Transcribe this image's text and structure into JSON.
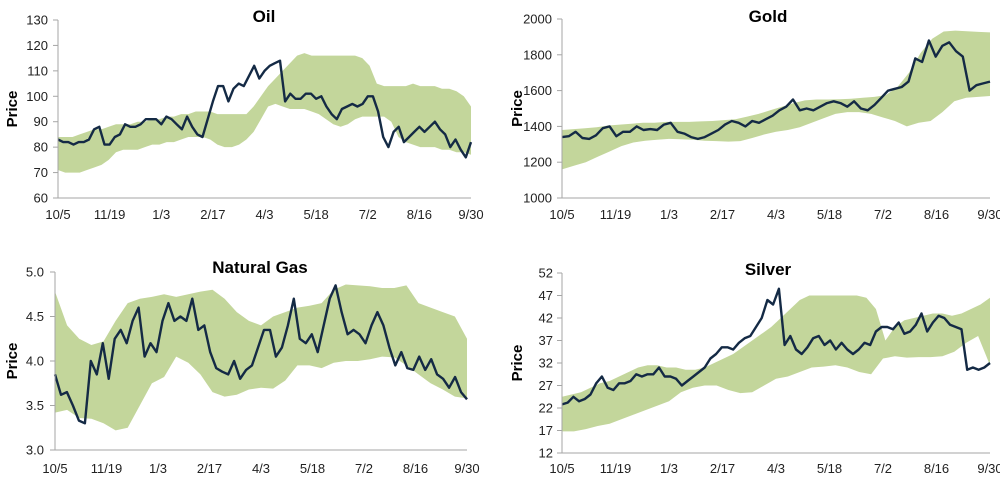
{
  "chart_data": [
    {
      "id": "oil",
      "type": "line",
      "title": "Oil",
      "xlabel": "",
      "ylabel": "Price",
      "ylim": [
        60,
        130
      ],
      "yticks": [
        60,
        70,
        80,
        90,
        100,
        110,
        120,
        130
      ],
      "xtick_labels": [
        "10/5",
        "11/19",
        "1/3",
        "2/17",
        "4/3",
        "5/18",
        "7/2",
        "8/16",
        "9/30"
      ],
      "grid": false,
      "series": [
        {
          "name": "Price",
          "values": [
            83,
            82,
            82,
            81,
            82,
            82,
            83,
            87,
            88,
            81,
            81,
            84,
            85,
            89,
            88,
            88,
            89,
            91,
            91,
            91,
            89,
            92,
            91,
            89,
            87,
            92,
            88,
            85,
            84,
            91,
            98,
            104,
            104,
            98,
            103,
            105,
            104,
            108,
            112,
            107,
            110,
            112,
            113,
            114,
            98,
            101,
            99,
            99,
            101,
            101,
            99,
            100,
            96,
            93,
            91,
            95,
            96,
            97,
            96,
            97,
            100,
            100,
            94,
            84,
            80,
            86,
            88,
            82,
            84,
            86,
            88,
            86,
            88,
            90,
            87,
            85,
            80,
            83,
            79,
            76,
            82
          ]
        },
        {
          "name": "Band upper",
          "values": [
            84,
            84,
            84,
            85,
            86,
            87,
            87,
            88,
            89,
            89,
            89,
            90,
            90,
            91,
            91,
            92,
            92,
            93,
            93,
            94,
            94,
            94,
            93,
            93,
            93,
            93,
            93,
            96,
            100,
            104,
            107,
            110,
            113,
            116,
            117,
            116,
            116,
            116,
            116,
            116,
            116,
            116,
            115,
            112,
            105,
            104,
            104,
            104,
            104,
            105,
            104,
            104,
            104,
            103,
            103,
            102,
            100,
            96
          ]
        },
        {
          "name": "Band lower",
          "values": [
            71,
            70,
            70,
            70,
            71,
            72,
            73,
            75,
            78,
            79,
            79,
            79,
            80,
            81,
            81,
            82,
            82,
            83,
            84,
            84,
            84,
            83,
            81,
            80,
            80,
            81,
            83,
            86,
            91,
            96,
            97,
            96,
            95,
            95,
            95,
            94,
            93,
            91,
            89,
            88,
            89,
            91,
            92,
            92,
            92,
            92,
            90,
            84,
            82,
            81,
            80,
            80,
            80,
            79,
            79,
            78,
            78,
            77
          ]
        }
      ]
    },
    {
      "id": "gold",
      "type": "line",
      "title": "Gold",
      "xlabel": "",
      "ylabel": "Price",
      "ylim": [
        1000,
        2000
      ],
      "yticks": [
        1000,
        1200,
        1400,
        1600,
        1800,
        2000
      ],
      "xtick_labels": [
        "10/5",
        "11/19",
        "1/3",
        "2/17",
        "4/3",
        "5/18",
        "7/2",
        "8/16",
        "9/30"
      ],
      "grid": false,
      "series": [
        {
          "name": "Price",
          "values": [
            1340,
            1345,
            1370,
            1335,
            1330,
            1350,
            1390,
            1400,
            1345,
            1370,
            1370,
            1400,
            1380,
            1385,
            1380,
            1410,
            1420,
            1370,
            1360,
            1340,
            1330,
            1340,
            1360,
            1380,
            1410,
            1430,
            1420,
            1400,
            1430,
            1420,
            1440,
            1460,
            1490,
            1510,
            1550,
            1490,
            1500,
            1490,
            1510,
            1530,
            1540,
            1530,
            1510,
            1540,
            1500,
            1490,
            1520,
            1560,
            1600,
            1610,
            1620,
            1650,
            1780,
            1760,
            1880,
            1790,
            1850,
            1870,
            1820,
            1790,
            1600,
            1630,
            1640,
            1650
          ]
        },
        {
          "name": "Band upper",
          "values": [
            1380,
            1385,
            1390,
            1395,
            1405,
            1410,
            1415,
            1420,
            1420,
            1425,
            1425,
            1425,
            1428,
            1430,
            1435,
            1440,
            1455,
            1470,
            1490,
            1510,
            1530,
            1545,
            1550,
            1550,
            1552,
            1555,
            1560,
            1565,
            1575,
            1620,
            1700,
            1810,
            1890,
            1930,
            1935,
            1932,
            1928,
            1925
          ]
        },
        {
          "name": "Band lower",
          "values": [
            1160,
            1180,
            1200,
            1230,
            1260,
            1290,
            1310,
            1320,
            1325,
            1330,
            1328,
            1325,
            1320,
            1318,
            1315,
            1318,
            1335,
            1355,
            1370,
            1380,
            1395,
            1420,
            1445,
            1470,
            1480,
            1480,
            1470,
            1450,
            1430,
            1400,
            1420,
            1430,
            1480,
            1540,
            1560,
            1565,
            1570
          ]
        }
      ]
    },
    {
      "id": "natural_gas",
      "type": "line",
      "title": "Natural Gas",
      "xlabel": "",
      "ylabel": "Price",
      "ylim": [
        3.0,
        5.0
      ],
      "yticks": [
        "3.0",
        "3.5",
        "4.0",
        "4.5",
        "5.0"
      ],
      "xtick_labels": [
        "10/5",
        "11/19",
        "1/3",
        "2/17",
        "4/3",
        "5/18",
        "7/2",
        "8/16",
        "9/30"
      ],
      "grid": false,
      "series": [
        {
          "name": "Price",
          "values": [
            3.85,
            3.62,
            3.65,
            3.5,
            3.33,
            3.3,
            4.0,
            3.85,
            4.2,
            3.8,
            4.25,
            4.35,
            4.2,
            4.45,
            4.6,
            4.05,
            4.2,
            4.1,
            4.45,
            4.65,
            4.45,
            4.5,
            4.45,
            4.7,
            4.35,
            4.4,
            4.1,
            3.92,
            3.88,
            3.85,
            4.0,
            3.8,
            3.9,
            3.95,
            4.15,
            4.35,
            4.35,
            4.05,
            4.15,
            4.4,
            4.7,
            4.25,
            4.2,
            4.3,
            4.1,
            4.4,
            4.7,
            4.85,
            4.55,
            4.3,
            4.35,
            4.3,
            4.2,
            4.4,
            4.55,
            4.4,
            4.15,
            3.95,
            4.1,
            3.92,
            3.9,
            4.05,
            3.9,
            4.02,
            3.85,
            3.8,
            3.7,
            3.82,
            3.65,
            3.57
          ]
        },
        {
          "name": "Band upper",
          "values": [
            4.78,
            4.4,
            4.25,
            4.18,
            4.22,
            4.45,
            4.65,
            4.7,
            4.72,
            4.75,
            4.72,
            4.75,
            4.78,
            4.8,
            4.7,
            4.55,
            4.45,
            4.4,
            4.5,
            4.55,
            4.6,
            4.62,
            4.65,
            4.8,
            4.86,
            4.85,
            4.84,
            4.82,
            4.82,
            4.85,
            4.65,
            4.6,
            4.55,
            4.5,
            4.25
          ]
        },
        {
          "name": "Band lower",
          "values": [
            3.42,
            3.45,
            3.36,
            3.35,
            3.3,
            3.22,
            3.25,
            3.5,
            3.75,
            3.82,
            4.05,
            3.98,
            3.85,
            3.65,
            3.6,
            3.62,
            3.68,
            3.7,
            3.69,
            3.78,
            3.95,
            3.95,
            3.92,
            3.98,
            4.0,
            4.0,
            4.02,
            4.05,
            4.04,
            3.95,
            3.85,
            3.75,
            3.68,
            3.6,
            3.58
          ]
        }
      ]
    },
    {
      "id": "silver",
      "type": "line",
      "title": "Silver",
      "xlabel": "",
      "ylabel": "Price",
      "ylim": [
        12,
        52
      ],
      "yticks": [
        12,
        17,
        22,
        27,
        32,
        37,
        42,
        47,
        52
      ],
      "xtick_labels": [
        "10/5",
        "11/19",
        "1/3",
        "2/17",
        "4/3",
        "5/18",
        "7/2",
        "8/16",
        "9/30"
      ],
      "grid": false,
      "series": [
        {
          "name": "Price",
          "values": [
            22.8,
            23.2,
            24.5,
            23.5,
            24,
            25,
            27.5,
            29,
            26.5,
            26,
            27.5,
            27.5,
            28,
            29.5,
            29,
            29.5,
            29.5,
            31,
            29,
            29,
            28.5,
            27,
            28,
            29,
            30,
            31,
            33,
            34,
            35.5,
            35.5,
            35,
            36.5,
            37.5,
            38,
            40,
            42,
            46,
            45,
            48.5,
            36,
            38,
            35,
            34,
            35.5,
            37.5,
            38,
            36,
            37,
            35,
            36.5,
            35,
            34,
            35,
            36.5,
            36,
            39,
            40,
            40,
            39.5,
            41,
            38.5,
            39,
            40.5,
            43,
            39,
            41,
            42.5,
            42,
            40.5,
            40,
            39.5,
            30.5,
            31,
            30.5,
            31,
            32
          ]
        },
        {
          "name": "Band upper",
          "values": [
            24.5,
            25,
            25.5,
            26.5,
            27.5,
            28,
            29,
            30,
            31,
            31.5,
            31.5,
            31,
            31,
            30.5,
            30.5,
            31,
            32,
            33,
            34,
            35.5,
            37,
            38.5,
            40,
            42,
            44,
            46,
            47,
            47,
            47,
            47,
            47,
            47,
            46.5,
            44,
            37,
            40,
            41.5,
            42,
            42.5,
            43,
            43,
            42.5,
            43,
            44,
            45,
            46.5
          ]
        },
        {
          "name": "Band lower",
          "values": [
            16.8,
            16.8,
            17.3,
            18,
            18.5,
            19.5,
            20.5,
            21.5,
            22.5,
            23.5,
            25.5,
            26.5,
            27,
            27,
            26,
            25.3,
            25.5,
            27,
            28.5,
            29,
            30,
            31,
            31.2,
            31.5,
            31,
            30,
            29.5,
            33,
            33.5,
            33.2,
            33.3,
            33.3,
            33.5,
            34.5,
            36.5,
            38,
            31.5
          ]
        }
      ]
    }
  ]
}
